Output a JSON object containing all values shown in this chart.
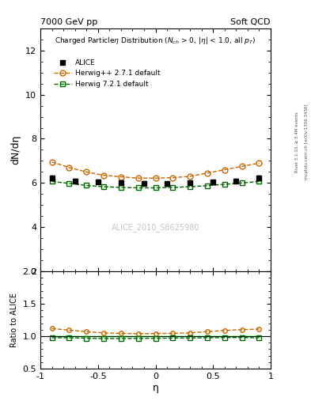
{
  "title_top_left": "7000 GeV pp",
  "title_top_right": "Soft QCD",
  "xlabel": "η",
  "ylabel_main": "dN/dη",
  "ylabel_ratio": "Ratio to ALICE",
  "watermark": "ALICE_2010_S8625980",
  "right_label": "Rivet 3.1.10, ≥ 3.4M events",
  "right_label2": "mcplots.cern.ch [arXiv:1306.3436]",
  "xlim": [
    -1.0,
    1.0
  ],
  "ylim_main": [
    2.0,
    13.0
  ],
  "ylim_ratio": [
    0.5,
    2.0
  ],
  "yticks_main": [
    2,
    4,
    6,
    8,
    10,
    12
  ],
  "yticks_ratio": [
    0.5,
    1.0,
    1.5,
    2.0
  ],
  "alice_eta": [
    -0.9,
    -0.7,
    -0.5,
    -0.3,
    -0.1,
    0.1,
    0.3,
    0.5,
    0.7,
    0.9
  ],
  "alice_y": [
    6.22,
    6.1,
    6.06,
    6.02,
    5.98,
    5.97,
    6.0,
    6.04,
    6.1,
    6.22
  ],
  "alice_yerr": [
    0.1,
    0.09,
    0.09,
    0.09,
    0.09,
    0.09,
    0.09,
    0.09,
    0.09,
    0.1
  ],
  "alice_color": "#000000",
  "herwig1_eta": [
    -0.9,
    -0.75,
    -0.6,
    -0.45,
    -0.3,
    -0.15,
    0.0,
    0.15,
    0.3,
    0.45,
    0.6,
    0.75,
    0.9
  ],
  "herwig1_y": [
    6.95,
    6.7,
    6.5,
    6.35,
    6.28,
    6.22,
    6.22,
    6.24,
    6.3,
    6.45,
    6.6,
    6.75,
    6.9
  ],
  "herwig1_color": "#cc6600",
  "herwig1_label": "Herwig++ 2.7.1 default",
  "herwig2_eta": [
    -0.9,
    -0.75,
    -0.6,
    -0.45,
    -0.3,
    -0.15,
    0.0,
    0.15,
    0.3,
    0.45,
    0.6,
    0.75,
    0.9
  ],
  "herwig2_y": [
    6.07,
    5.98,
    5.89,
    5.83,
    5.8,
    5.78,
    5.78,
    5.8,
    5.83,
    5.88,
    5.94,
    6.0,
    6.07
  ],
  "herwig2_color": "#006600",
  "herwig2_label": "Herwig 7.2.1 default",
  "ratio_alice_band_color": "#aaffaa",
  "ratio_alice_band_alpha": 0.6
}
